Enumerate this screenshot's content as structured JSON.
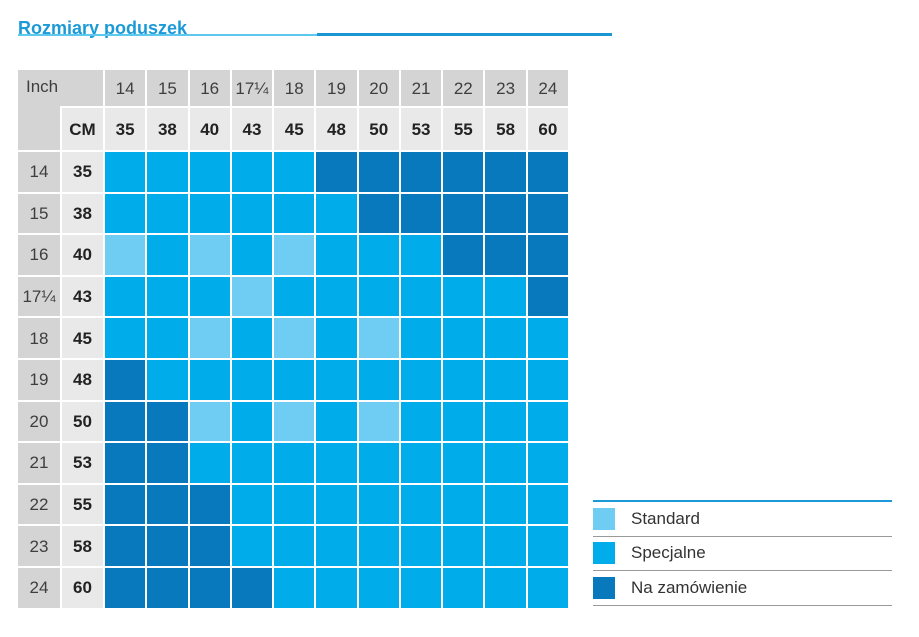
{
  "title": "Rozmiary poduszek",
  "table": {
    "corner_label": "Inch",
    "cm_header_label": "CM"
  },
  "legend": {
    "items": [
      {
        "code": "S",
        "label": "Standard"
      },
      {
        "code": "P",
        "label": "Specjalne"
      },
      {
        "code": "Z",
        "label": "Na zamówienie"
      }
    ]
  },
  "colors": {
    "standard": "#6FCDF3",
    "specjalne": "#00ACEA",
    "na_zamowienie": "#0979BE",
    "header_gray": "#D4D4D4",
    "subheader_gray": "#E9E9E9",
    "title_blue": "#1B9AD7",
    "rule_light": "#5FC8EF",
    "rule_dark": "#1B96D3",
    "separator_gray": "#9A9A9A"
  },
  "chart_data": {
    "type": "heatmap",
    "title": "Rozmiary poduszek",
    "x_axis_label": "Inch / CM",
    "y_axis_label": "Inch / CM",
    "x_categories_inch": [
      "14",
      "15",
      "16",
      "17¼",
      "18",
      "19",
      "20",
      "21",
      "22",
      "23",
      "24"
    ],
    "x_categories_cm": [
      "35",
      "38",
      "40",
      "43",
      "45",
      "48",
      "50",
      "53",
      "55",
      "58",
      "60"
    ],
    "y_categories_inch": [
      "14",
      "15",
      "16",
      "17¼",
      "18",
      "19",
      "20",
      "21",
      "22",
      "23",
      "24"
    ],
    "y_categories_cm": [
      "35",
      "38",
      "40",
      "43",
      "45",
      "48",
      "50",
      "53",
      "55",
      "58",
      "60"
    ],
    "cell_codes": {
      "S": "Standard",
      "P": "Specjalne",
      "Z": "Na zamówienie"
    },
    "legend_position": "bottom-right",
    "matrix": [
      [
        "P",
        "P",
        "P",
        "P",
        "P",
        "Z",
        "Z",
        "Z",
        "Z",
        "Z",
        "Z"
      ],
      [
        "P",
        "P",
        "P",
        "P",
        "P",
        "P",
        "Z",
        "Z",
        "Z",
        "Z",
        "Z"
      ],
      [
        "S",
        "P",
        "S",
        "P",
        "S",
        "P",
        "P",
        "P",
        "Z",
        "Z",
        "Z"
      ],
      [
        "P",
        "P",
        "P",
        "S",
        "P",
        "P",
        "P",
        "P",
        "P",
        "P",
        "Z"
      ],
      [
        "P",
        "P",
        "S",
        "P",
        "S",
        "P",
        "S",
        "P",
        "P",
        "P",
        "P"
      ],
      [
        "Z",
        "P",
        "P",
        "P",
        "P",
        "P",
        "P",
        "P",
        "P",
        "P",
        "P"
      ],
      [
        "Z",
        "Z",
        "S",
        "P",
        "S",
        "P",
        "S",
        "P",
        "P",
        "P",
        "P"
      ],
      [
        "Z",
        "Z",
        "P",
        "P",
        "P",
        "P",
        "P",
        "P",
        "P",
        "P",
        "P"
      ],
      [
        "Z",
        "Z",
        "Z",
        "P",
        "P",
        "P",
        "P",
        "P",
        "P",
        "P",
        "P"
      ],
      [
        "Z",
        "Z",
        "Z",
        "P",
        "P",
        "P",
        "P",
        "P",
        "P",
        "P",
        "P"
      ],
      [
        "Z",
        "Z",
        "Z",
        "Z",
        "P",
        "P",
        "P",
        "P",
        "P",
        "P",
        "P"
      ]
    ]
  }
}
